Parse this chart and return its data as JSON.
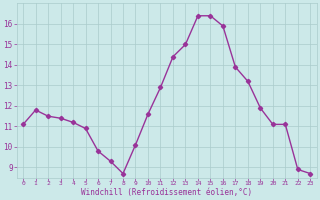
{
  "x": [
    0,
    1,
    2,
    3,
    4,
    5,
    6,
    7,
    8,
    9,
    10,
    11,
    12,
    13,
    14,
    15,
    16,
    17,
    18,
    19,
    20,
    21,
    22,
    23
  ],
  "y": [
    11.1,
    11.8,
    11.5,
    11.4,
    11.2,
    10.9,
    9.8,
    9.3,
    8.7,
    10.1,
    11.6,
    12.9,
    14.4,
    15.0,
    16.4,
    16.4,
    15.9,
    13.9,
    13.2,
    11.9,
    11.1,
    11.1,
    8.9,
    8.7
  ],
  "line_color": "#993399",
  "marker": "D",
  "marker_size": 2.2,
  "bg_color": "#cce9e9",
  "grid_color": "#aacccc",
  "xlabel": "Windchill (Refroidissement éolien,°C)",
  "xlabel_color": "#993399",
  "tick_color": "#993399",
  "ylim": [
    8.5,
    17.0
  ],
  "xlim": [
    -0.5,
    23.5
  ],
  "yticks": [
    9,
    10,
    11,
    12,
    13,
    14,
    15,
    16
  ],
  "xticks": [
    0,
    1,
    2,
    3,
    4,
    5,
    6,
    7,
    8,
    9,
    10,
    11,
    12,
    13,
    14,
    15,
    16,
    17,
    18,
    19,
    20,
    21,
    22,
    23
  ],
  "xtick_labels": [
    "0",
    "1",
    "2",
    "3",
    "4",
    "5",
    "6",
    "7",
    "8",
    "9",
    "10",
    "11",
    "12",
    "13",
    "14",
    "15",
    "16",
    "17",
    "18",
    "19",
    "20",
    "21",
    "22",
    "23"
  ]
}
